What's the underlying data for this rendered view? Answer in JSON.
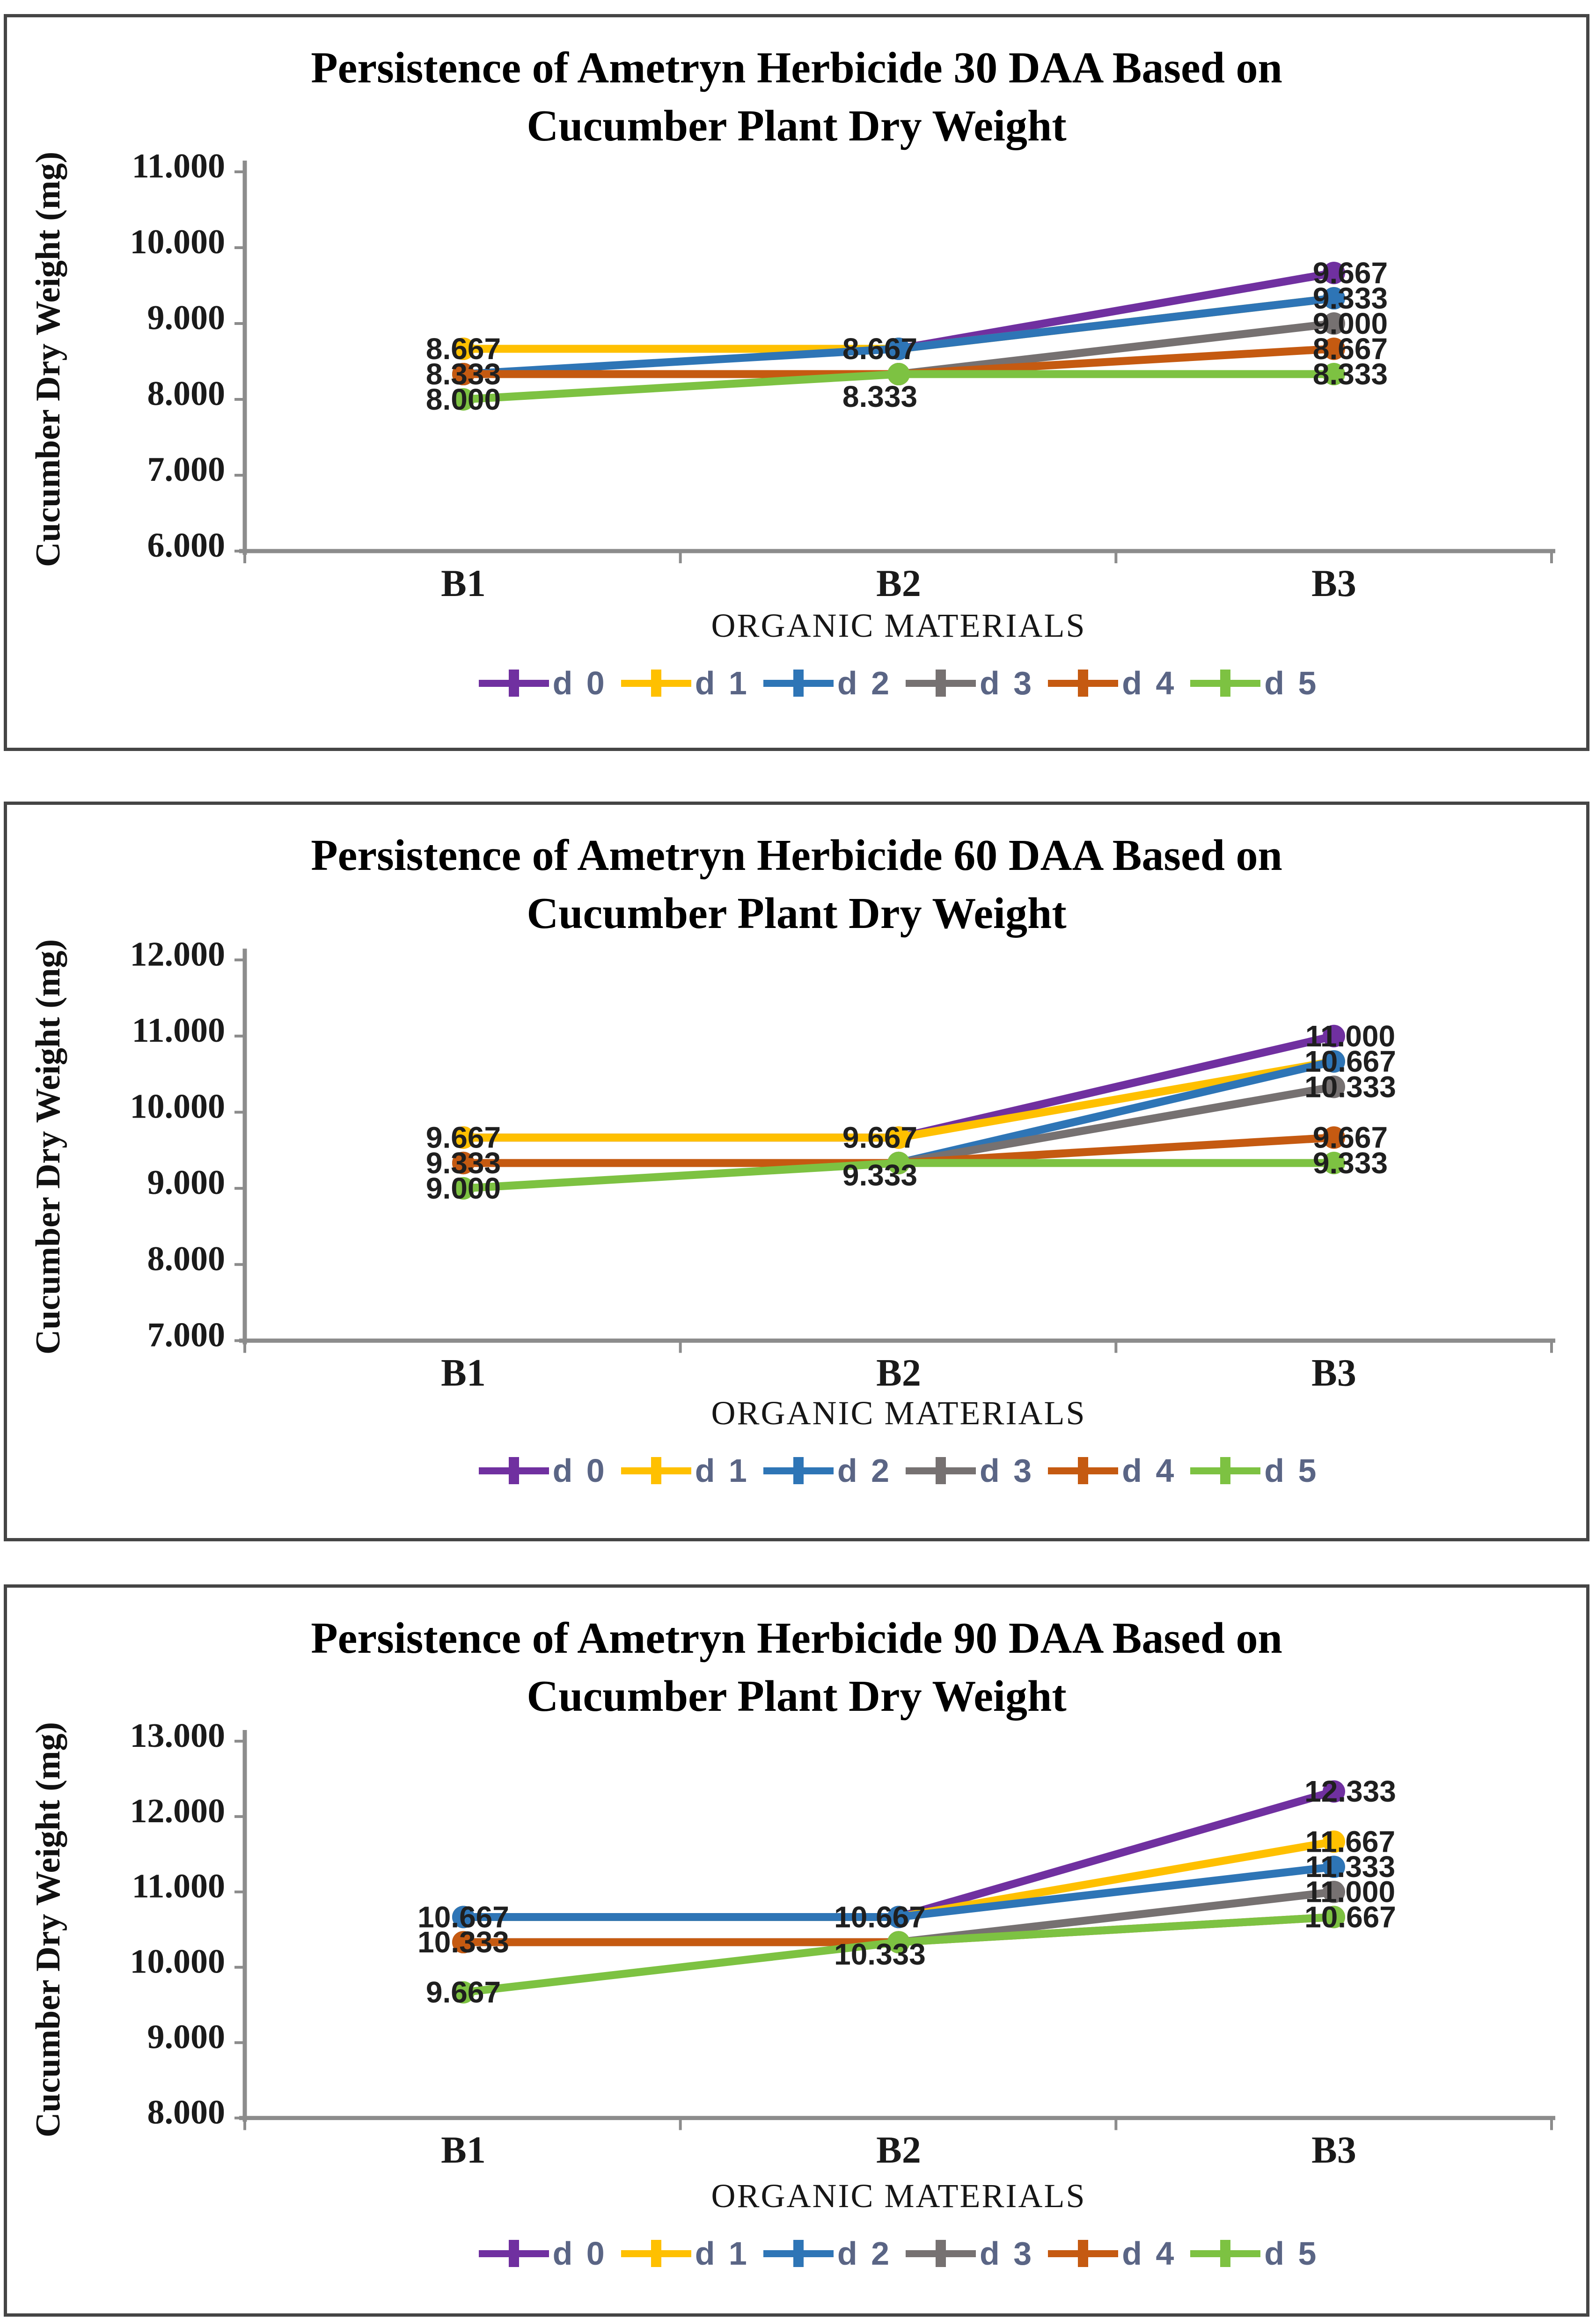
{
  "chart_data": [
    {
      "type": "line",
      "title_line1": "Persistence of Ametryn Herbicide 30 DAA Based on",
      "title_line2": "Cucumber Plant Dry Weight",
      "xlabel": "ORGANIC MATERIALS",
      "ylabel": "Cucumber Dry Weight (mg)",
      "categories": [
        "B1",
        "B2",
        "B3"
      ],
      "ylim": [
        6,
        11
      ],
      "y_tick_labels": [
        "6.000",
        "7.000",
        "8.000",
        "9.000",
        "10.000",
        "11.000"
      ],
      "grid": false,
      "legend_position": "bottom",
      "series": [
        {
          "name": "d 0",
          "color": "#7030A0",
          "values": [
            8.667,
            8.667,
            9.667
          ]
        },
        {
          "name": "d 1",
          "color": "#FFC000",
          "values": [
            8.667,
            8.667,
            9.333
          ]
        },
        {
          "name": "d 2",
          "color": "#2E75B6",
          "values": [
            8.333,
            8.667,
            9.333
          ]
        },
        {
          "name": "d 3",
          "color": "#767171",
          "values": [
            8.333,
            8.333,
            9.0
          ]
        },
        {
          "name": "d 4",
          "color": "#C55A11",
          "values": [
            8.333,
            8.333,
            8.667
          ]
        },
        {
          "name": "d 5",
          "color": "#7DC242",
          "values": [
            8.0,
            8.333,
            8.333
          ]
        }
      ],
      "data_labels": [
        {
          "cat": 0,
          "v": 8.667,
          "text": "8.667"
        },
        {
          "cat": 0,
          "v": 8.333,
          "text": "8.333"
        },
        {
          "cat": 0,
          "v": 8.0,
          "text": "8.000"
        },
        {
          "cat": 1,
          "v": 8.667,
          "text": "8.667"
        },
        {
          "cat": 1,
          "v": 8.333,
          "text": "8.333",
          "dy": 48
        },
        {
          "cat": 2,
          "v": 9.667,
          "text": "9.667"
        },
        {
          "cat": 2,
          "v": 9.333,
          "text": "9.333"
        },
        {
          "cat": 2,
          "v": 9.0,
          "text": "9.000"
        },
        {
          "cat": 2,
          "v": 8.667,
          "text": "8.667"
        },
        {
          "cat": 2,
          "v": 8.333,
          "text": "8.333"
        }
      ]
    },
    {
      "type": "line",
      "title_line1": "Persistence of Ametryn Herbicide 60 DAA Based on",
      "title_line2": "Cucumber Plant Dry Weight",
      "xlabel": "ORGANIC MATERIALS",
      "ylabel": "Cucumber Dry Weight (mg)",
      "categories": [
        "B1",
        "B2",
        "B3"
      ],
      "ylim": [
        7,
        12
      ],
      "y_tick_labels": [
        "7.000",
        "8.000",
        "9.000",
        "10.000",
        "11.000",
        "12.000"
      ],
      "grid": false,
      "legend_position": "bottom",
      "series": [
        {
          "name": "d 0",
          "color": "#7030A0",
          "values": [
            9.667,
            9.667,
            11.0
          ]
        },
        {
          "name": "d 1",
          "color": "#FFC000",
          "values": [
            9.667,
            9.667,
            10.667
          ]
        },
        {
          "name": "d 2",
          "color": "#2E75B6",
          "values": [
            9.333,
            9.333,
            10.667
          ]
        },
        {
          "name": "d 3",
          "color": "#767171",
          "values": [
            9.333,
            9.333,
            10.333
          ]
        },
        {
          "name": "d 4",
          "color": "#C55A11",
          "values": [
            9.333,
            9.333,
            9.667
          ]
        },
        {
          "name": "d 5",
          "color": "#7DC242",
          "values": [
            9.0,
            9.333,
            9.333
          ]
        }
      ],
      "data_labels": [
        {
          "cat": 0,
          "v": 9.667,
          "text": "9.667"
        },
        {
          "cat": 0,
          "v": 9.333,
          "text": "9.333"
        },
        {
          "cat": 0,
          "v": 9.0,
          "text": "9.000"
        },
        {
          "cat": 1,
          "v": 9.667,
          "text": "9.667"
        },
        {
          "cat": 1,
          "v": 9.333,
          "text": "9.333",
          "dy": 26
        },
        {
          "cat": 2,
          "v": 11.0,
          "text": "11.000"
        },
        {
          "cat": 2,
          "v": 10.667,
          "text": "10.667"
        },
        {
          "cat": 2,
          "v": 10.333,
          "text": "10.333"
        },
        {
          "cat": 2,
          "v": 9.667,
          "text": "9.667"
        },
        {
          "cat": 2,
          "v": 9.333,
          "text": "9.333"
        }
      ]
    },
    {
      "type": "line",
      "title_line1": "Persistence of Ametryn Herbicide 90 DAA Based on",
      "title_line2": "Cucumber Plant Dry Weight",
      "xlabel": "ORGANIC MATERIALS",
      "ylabel": "Cucumber Dry Weight (mg)",
      "categories": [
        "B1",
        "B2",
        "B3"
      ],
      "ylim": [
        8,
        13
      ],
      "y_tick_labels": [
        "8.000",
        "9.000",
        "10.000",
        "11.000",
        "12.000",
        "13.000"
      ],
      "grid": false,
      "legend_position": "bottom",
      "series": [
        {
          "name": "d 0",
          "color": "#7030A0",
          "values": [
            10.667,
            10.667,
            12.333
          ]
        },
        {
          "name": "d 1",
          "color": "#FFC000",
          "values": [
            10.667,
            10.667,
            11.667
          ]
        },
        {
          "name": "d 2",
          "color": "#2E75B6",
          "values": [
            10.667,
            10.667,
            11.333
          ]
        },
        {
          "name": "d 3",
          "color": "#767171",
          "values": [
            10.333,
            10.333,
            11.0
          ]
        },
        {
          "name": "d 4",
          "color": "#C55A11",
          "values": [
            10.333,
            10.333,
            10.667
          ]
        },
        {
          "name": "d 5",
          "color": "#7DC242",
          "values": [
            9.667,
            10.333,
            10.667
          ]
        }
      ],
      "data_labels": [
        {
          "cat": 0,
          "v": 10.667,
          "text": "10.667"
        },
        {
          "cat": 0,
          "v": 10.333,
          "text": "10.333"
        },
        {
          "cat": 0,
          "v": 9.667,
          "text": "9.667"
        },
        {
          "cat": 1,
          "v": 10.667,
          "text": "10.667"
        },
        {
          "cat": 1,
          "v": 10.333,
          "text": "10.333",
          "dy": 26
        },
        {
          "cat": 2,
          "v": 12.333,
          "text": "12.333"
        },
        {
          "cat": 2,
          "v": 11.667,
          "text": "11.667"
        },
        {
          "cat": 2,
          "v": 11.333,
          "text": "11.333"
        },
        {
          "cat": 2,
          "v": 11.0,
          "text": "11.000"
        },
        {
          "cat": 2,
          "v": 10.667,
          "text": "10.667"
        }
      ]
    }
  ]
}
